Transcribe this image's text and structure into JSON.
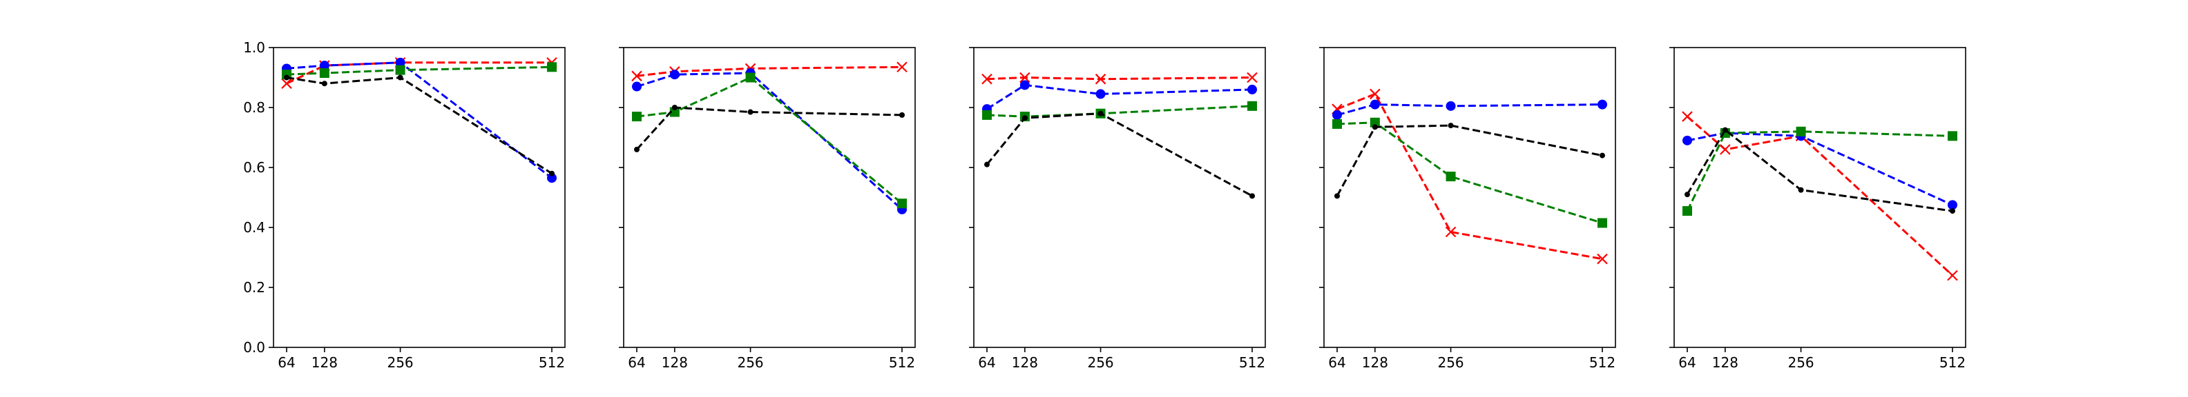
{
  "chart_data": [
    {
      "type": "line",
      "x": [
        64,
        128,
        256,
        512
      ],
      "x_ticks": [
        "64",
        "128",
        "256",
        "512"
      ],
      "ylim": [
        0,
        1
      ],
      "y_ticks": [
        "0.0",
        "0.2",
        "0.4",
        "0.6",
        "0.8",
        "1.0"
      ],
      "grid": false,
      "series": [
        {
          "color": "#ff0000",
          "marker": "x",
          "values": [
            0.88,
            0.94,
            0.95,
            0.95
          ]
        },
        {
          "color": "#0000ff",
          "marker": "circle",
          "values": [
            0.93,
            0.94,
            0.95,
            0.565
          ]
        },
        {
          "color": "#008000",
          "marker": "square",
          "values": [
            0.91,
            0.915,
            0.925,
            0.935
          ]
        },
        {
          "color": "#000000",
          "marker": "dot",
          "values": [
            0.9,
            0.88,
            0.9,
            0.58
          ]
        }
      ]
    },
    {
      "type": "line",
      "x": [
        64,
        128,
        256,
        512
      ],
      "x_ticks": [
        "64",
        "128",
        "256",
        "512"
      ],
      "ylim": [
        0,
        1
      ],
      "grid": false,
      "series": [
        {
          "color": "#ff0000",
          "marker": "x",
          "values": [
            0.905,
            0.92,
            0.93,
            0.935
          ]
        },
        {
          "color": "#0000ff",
          "marker": "circle",
          "values": [
            0.87,
            0.91,
            0.915,
            0.46
          ]
        },
        {
          "color": "#008000",
          "marker": "square",
          "values": [
            0.77,
            0.785,
            0.9,
            0.48
          ]
        },
        {
          "color": "#000000",
          "marker": "dot",
          "values": [
            0.66,
            0.8,
            0.785,
            0.775
          ]
        }
      ]
    },
    {
      "type": "line",
      "x": [
        64,
        128,
        256,
        512
      ],
      "x_ticks": [
        "64",
        "128",
        "256",
        "512"
      ],
      "ylim": [
        0,
        1
      ],
      "grid": false,
      "series": [
        {
          "color": "#ff0000",
          "marker": "x",
          "values": [
            0.895,
            0.9,
            0.895,
            0.9
          ]
        },
        {
          "color": "#0000ff",
          "marker": "circle",
          "values": [
            0.795,
            0.875,
            0.845,
            0.86
          ]
        },
        {
          "color": "#008000",
          "marker": "square",
          "values": [
            0.775,
            0.77,
            0.78,
            0.805
          ]
        },
        {
          "color": "#000000",
          "marker": "dot",
          "values": [
            0.61,
            0.765,
            0.78,
            0.505
          ]
        }
      ]
    },
    {
      "type": "line",
      "x": [
        64,
        128,
        256,
        512
      ],
      "x_ticks": [
        "64",
        "128",
        "256",
        "512"
      ],
      "ylim": [
        0,
        1
      ],
      "grid": false,
      "series": [
        {
          "color": "#ff0000",
          "marker": "x",
          "values": [
            0.795,
            0.845,
            0.385,
            0.295
          ]
        },
        {
          "color": "#0000ff",
          "marker": "circle",
          "values": [
            0.775,
            0.81,
            0.805,
            0.81
          ]
        },
        {
          "color": "#008000",
          "marker": "square",
          "values": [
            0.745,
            0.75,
            0.57,
            0.415
          ]
        },
        {
          "color": "#000000",
          "marker": "dot",
          "values": [
            0.505,
            0.735,
            0.74,
            0.64
          ]
        }
      ]
    },
    {
      "type": "line",
      "x": [
        64,
        128,
        256,
        512
      ],
      "x_ticks": [
        "64",
        "128",
        "256",
        "512"
      ],
      "ylim": [
        0,
        1
      ],
      "grid": false,
      "series": [
        {
          "color": "#ff0000",
          "marker": "x",
          "values": [
            0.77,
            0.66,
            0.705,
            0.24
          ]
        },
        {
          "color": "#0000ff",
          "marker": "circle",
          "values": [
            0.69,
            0.715,
            0.705,
            0.475
          ]
        },
        {
          "color": "#008000",
          "marker": "square",
          "values": [
            0.455,
            0.715,
            0.72,
            0.705
          ]
        },
        {
          "color": "#000000",
          "marker": "dot",
          "values": [
            0.51,
            0.725,
            0.525,
            0.455
          ]
        }
      ]
    }
  ]
}
